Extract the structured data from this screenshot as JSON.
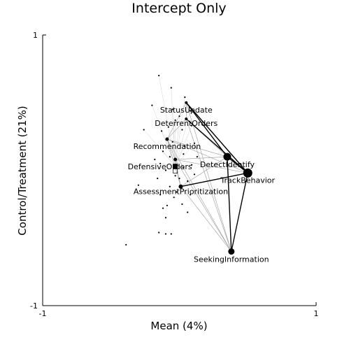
{
  "chart_data": {
    "type": "scatter",
    "title": "Intercept Only",
    "xlabel": "Mean (4%)",
    "ylabel": "Control/Treatment (21%)",
    "xlim": [
      -1,
      1
    ],
    "ylim": [
      -1,
      1
    ],
    "x_ticks": [
      "-1",
      "1"
    ],
    "y_ticks": [
      "-1",
      "1"
    ],
    "grid": false,
    "legend": "none",
    "colors": {
      "points": "#000000",
      "edges": "#000000",
      "edges_faint": "#9a9a9a",
      "box": "#000000"
    },
    "labeled_nodes": [
      {
        "name": "StatusUpdate",
        "x": 0.05,
        "y": 0.5,
        "size": 2
      },
      {
        "name": "DeterrentOrders",
        "x": 0.05,
        "y": 0.38,
        "size": 2
      },
      {
        "name": "Recommendation",
        "x": -0.09,
        "y": 0.23,
        "size": 2.5
      },
      {
        "name": "DefensiveOrders",
        "x": -0.03,
        "y": 0.08,
        "size": 2.5
      },
      {
        "name": "DetectIdentify",
        "x": 0.35,
        "y": 0.1,
        "size": 5.5
      },
      {
        "name": "TrackBehavior",
        "x": 0.5,
        "y": -0.02,
        "size": 6.5
      },
      {
        "name": "AssessmentPrioritization",
        "x": 0.01,
        "y": -0.12,
        "size": 3
      },
      {
        "name": "SeekingInformation",
        "x": 0.38,
        "y": -0.6,
        "size": 4.5
      }
    ],
    "center_box": {
      "x": -0.03,
      "y": 0.03
    },
    "unlabeled_points": [
      [
        -0.15,
        0.7
      ],
      [
        -0.06,
        0.61
      ],
      [
        -0.2,
        0.48
      ],
      [
        0.04,
        0.54
      ],
      [
        -0.26,
        0.3
      ],
      [
        -0.05,
        0.45
      ],
      [
        -0.13,
        0.29
      ],
      [
        -0.03,
        0.37
      ],
      [
        0.08,
        0.44
      ],
      [
        0.0,
        0.4
      ],
      [
        0.09,
        0.33
      ],
      [
        -0.12,
        0.14
      ],
      [
        -0.05,
        0.21
      ],
      [
        -0.07,
        0.1
      ],
      [
        -0.14,
        0.05
      ],
      [
        0.04,
        0.18
      ],
      [
        0.11,
        0.2
      ],
      [
        -0.1,
        0.0
      ],
      [
        0.03,
        0.02
      ],
      [
        -0.03,
        -0.04
      ],
      [
        0.09,
        0.04
      ],
      [
        -0.3,
        -0.11
      ],
      [
        -0.14,
        -0.18
      ],
      [
        -0.09,
        -0.26
      ],
      [
        -0.02,
        -0.16
      ],
      [
        0.08,
        -0.18
      ],
      [
        -0.12,
        -0.28
      ],
      [
        0.02,
        -0.25
      ],
      [
        -0.1,
        -0.35
      ],
      [
        0.06,
        -0.31
      ],
      [
        -0.15,
        -0.46
      ],
      [
        -0.06,
        -0.47
      ],
      [
        -0.1,
        -0.47
      ],
      [
        -0.39,
        -0.55
      ],
      [
        0.0,
        -0.06
      ],
      [
        -0.18,
        0.08
      ],
      [
        0.13,
        0.1
      ],
      [
        -0.16,
        -0.06
      ],
      [
        0.06,
        -0.08
      ],
      [
        0.11,
        -0.03
      ],
      [
        -0.08,
        0.32
      ],
      [
        0.02,
        0.3
      ],
      [
        -0.04,
        -0.2
      ],
      [
        0.03,
        0.12
      ],
      [
        -0.07,
        -0.12
      ]
    ],
    "edges": [
      [
        "StatusUpdate",
        "DetectIdentify"
      ],
      [
        "StatusUpdate",
        "TrackBehavior"
      ],
      [
        "StatusUpdate",
        "SeekingInformation"
      ],
      [
        "DeterrentOrders",
        "DetectIdentify"
      ],
      [
        "DeterrentOrders",
        "TrackBehavior"
      ],
      [
        "DeterrentOrders",
        "SeekingInformation"
      ],
      [
        "Recommendation",
        "DetectIdentify"
      ],
      [
        "Recommendation",
        "TrackBehavior"
      ],
      [
        "Recommendation",
        "SeekingInformation"
      ],
      [
        "Recommendation",
        "AssessmentPrioritization"
      ],
      [
        "DefensiveOrders",
        "DetectIdentify"
      ],
      [
        "DefensiveOrders",
        "TrackBehavior"
      ],
      [
        "DefensiveOrders",
        "SeekingInformation"
      ],
      [
        "DetectIdentify",
        "TrackBehavior"
      ],
      [
        "DetectIdentify",
        "SeekingInformation"
      ],
      [
        "TrackBehavior",
        "SeekingInformation"
      ],
      [
        "AssessmentPrioritization",
        "DetectIdentify"
      ],
      [
        "AssessmentPrioritization",
        "TrackBehavior"
      ],
      [
        "AssessmentPrioritization",
        "SeekingInformation"
      ],
      [
        "StatusUpdate",
        "DeterrentOrders"
      ],
      [
        "StatusUpdate",
        "Recommendation"
      ],
      [
        "DeterrentOrders",
        "Recommendation"
      ],
      [
        "Recommendation",
        "DefensiveOrders"
      ],
      [
        "DefensiveOrders",
        "AssessmentPrioritization"
      ]
    ],
    "strong_edges": [
      [
        "StatusUpdate",
        "DetectIdentify"
      ],
      [
        "DetectIdentify",
        "TrackBehavior"
      ],
      [
        "TrackBehavior",
        "SeekingInformation"
      ],
      [
        "DetectIdentify",
        "SeekingInformation"
      ],
      [
        "AssessmentPrioritization",
        "TrackBehavior"
      ],
      [
        "StatusUpdate",
        "TrackBehavior"
      ],
      [
        "DeterrentOrders",
        "TrackBehavior"
      ]
    ]
  }
}
